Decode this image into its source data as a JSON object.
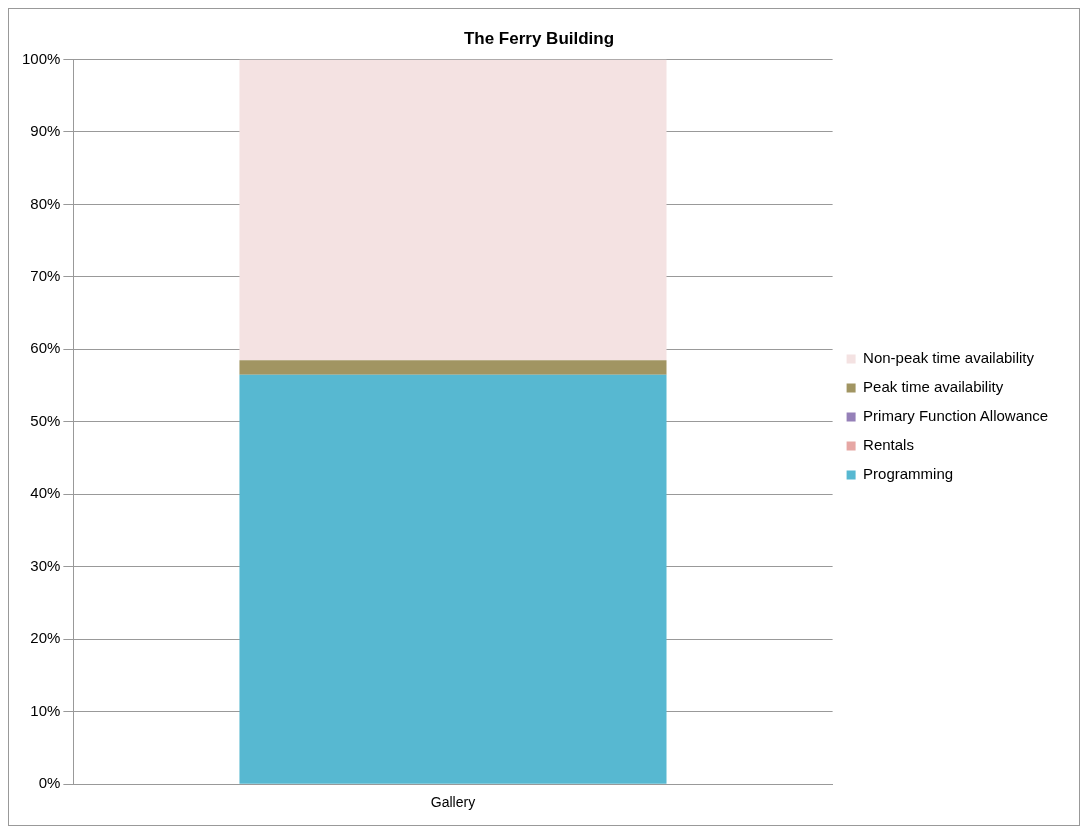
{
  "chart_data": {
    "type": "bar",
    "title": "The Ferry Building",
    "categories": [
      "Gallery"
    ],
    "stacked": true,
    "series": [
      {
        "name": "Programming",
        "color": "#57b8d1",
        "values": [
          56.5
        ]
      },
      {
        "name": "Rentals",
        "color": "#e6a7a4",
        "values": [
          0
        ]
      },
      {
        "name": "Primary Function Allowance",
        "color": "#9580b8",
        "values": [
          0
        ]
      },
      {
        "name": "Peak time availability",
        "color": "#a19562",
        "values": [
          2
        ]
      },
      {
        "name": "Non-peak time availability",
        "color": "#f4e2e2",
        "values": [
          41.5
        ]
      }
    ],
    "ylim": [
      0,
      100
    ],
    "yticks": [
      {
        "value": 0,
        "label": "0%"
      },
      {
        "value": 10,
        "label": "10%"
      },
      {
        "value": 20,
        "label": "20%"
      },
      {
        "value": 30,
        "label": "30%"
      },
      {
        "value": 40,
        "label": "40%"
      },
      {
        "value": 50,
        "label": "50%"
      },
      {
        "value": 60,
        "label": "60%"
      },
      {
        "value": 70,
        "label": "70%"
      },
      {
        "value": 80,
        "label": "80%"
      },
      {
        "value": 90,
        "label": "90%"
      },
      {
        "value": 100,
        "label": "100%"
      }
    ],
    "grid": "y",
    "legend": "right"
  }
}
